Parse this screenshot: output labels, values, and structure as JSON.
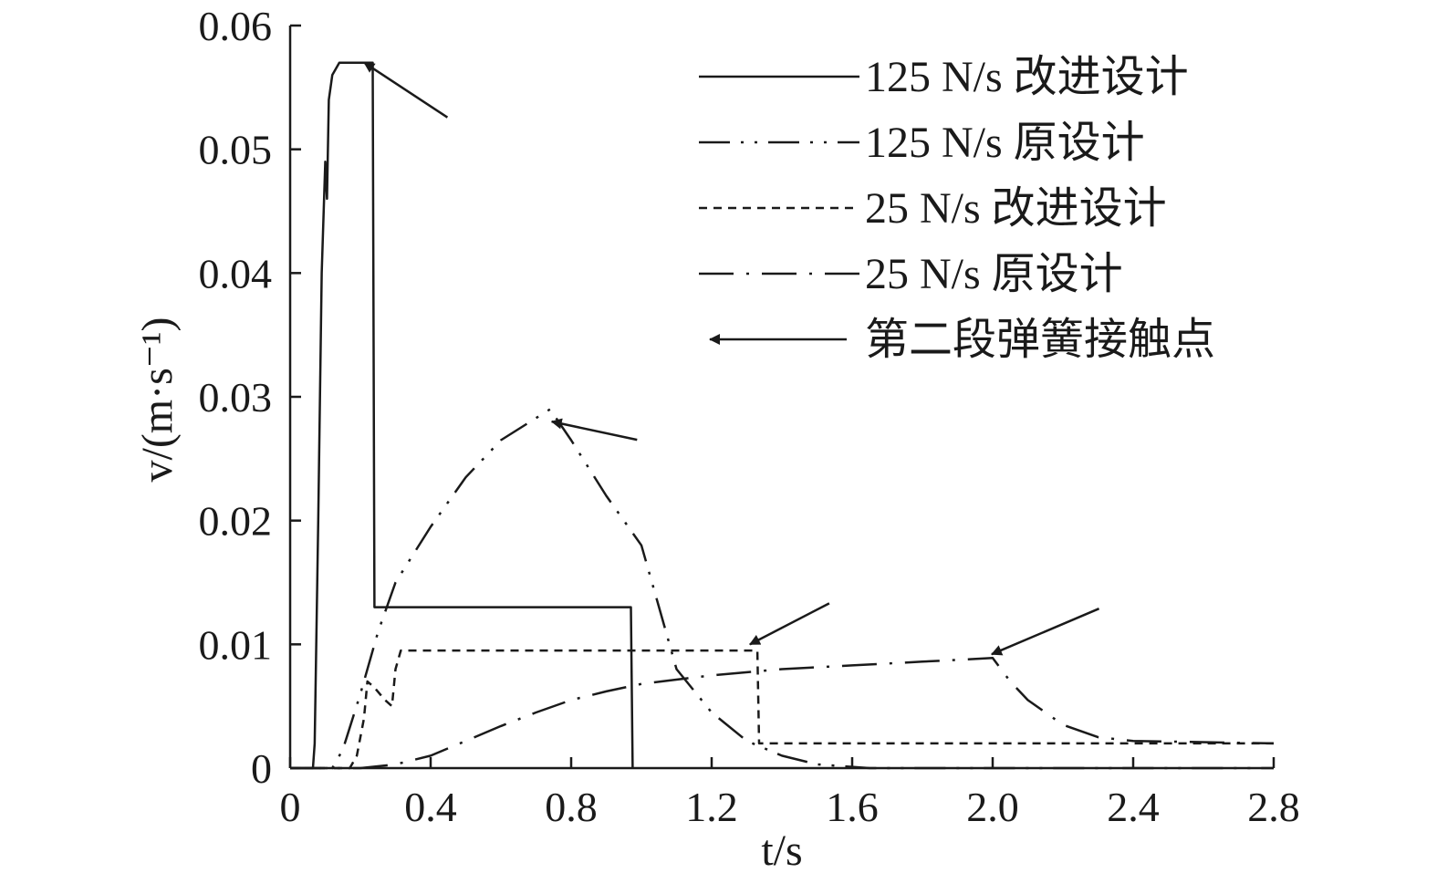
{
  "chart_data": {
    "type": "line",
    "xlabel": "t/s",
    "ylabel": "v/(m·s⁻¹)",
    "xlim": [
      0,
      2.8
    ],
    "ylim": [
      0,
      0.06
    ],
    "x_ticks": [
      "0",
      "0.4",
      "0.8",
      "1.2",
      "1.6",
      "2.0",
      "2.4",
      "2.8"
    ],
    "y_ticks": [
      "0",
      "0.01",
      "0.02",
      "0.03",
      "0.04",
      "0.05",
      "0.06"
    ],
    "grid": false,
    "legend_position": "top-right",
    "series": [
      {
        "name": "125 N/s 改进设计",
        "style": "solid",
        "points": [
          [
            0.0,
            0
          ],
          [
            0.065,
            0
          ],
          [
            0.07,
            0.002
          ],
          [
            0.08,
            0.02
          ],
          [
            0.09,
            0.04
          ],
          [
            0.1,
            0.049
          ],
          [
            0.105,
            0.046
          ],
          [
            0.11,
            0.054
          ],
          [
            0.12,
            0.056
          ],
          [
            0.14,
            0.057
          ],
          [
            0.235,
            0.057
          ],
          [
            0.24,
            0.013
          ],
          [
            0.97,
            0.013
          ],
          [
            0.975,
            0
          ]
        ]
      },
      {
        "name": "125 N/s 原设计",
        "style": "dash-dot-dot",
        "points": [
          [
            0.0,
            0
          ],
          [
            0.12,
            0
          ],
          [
            0.15,
            0.0015
          ],
          [
            0.2,
            0.006
          ],
          [
            0.25,
            0.011
          ],
          [
            0.3,
            0.015
          ],
          [
            0.4,
            0.0195
          ],
          [
            0.5,
            0.0235
          ],
          [
            0.6,
            0.0265
          ],
          [
            0.74,
            0.029
          ],
          [
            0.8,
            0.0265
          ],
          [
            0.9,
            0.022
          ],
          [
            1.0,
            0.018
          ],
          [
            1.05,
            0.013
          ],
          [
            1.1,
            0.008
          ],
          [
            1.2,
            0.0045
          ],
          [
            1.3,
            0.0022
          ],
          [
            1.4,
            0.001
          ],
          [
            1.5,
            0.0003
          ],
          [
            1.65,
            0
          ],
          [
            2.8,
            0
          ]
        ]
      },
      {
        "name": "25 N/s 改进设计",
        "style": "dashed",
        "points": [
          [
            0.0,
            0
          ],
          [
            0.17,
            0
          ],
          [
            0.19,
            0.001
          ],
          [
            0.21,
            0.004
          ],
          [
            0.22,
            0.007
          ],
          [
            0.24,
            0.0065
          ],
          [
            0.27,
            0.0055
          ],
          [
            0.29,
            0.005
          ],
          [
            0.3,
            0.008
          ],
          [
            0.315,
            0.0095
          ],
          [
            1.33,
            0.0095
          ],
          [
            1.335,
            0.002
          ],
          [
            2.8,
            0.002
          ]
        ]
      },
      {
        "name": "25 N/s 原设计",
        "style": "dash-dot",
        "points": [
          [
            0.0,
            0
          ],
          [
            0.2,
            0
          ],
          [
            0.3,
            0.0003
          ],
          [
            0.4,
            0.001
          ],
          [
            0.5,
            0.0022
          ],
          [
            0.6,
            0.0034
          ],
          [
            0.7,
            0.0045
          ],
          [
            0.8,
            0.0055
          ],
          [
            0.9,
            0.0062
          ],
          [
            1.0,
            0.0068
          ],
          [
            1.2,
            0.0075
          ],
          [
            1.4,
            0.008
          ],
          [
            1.6,
            0.0083
          ],
          [
            1.8,
            0.0086
          ],
          [
            2.0,
            0.0089
          ],
          [
            2.05,
            0.007
          ],
          [
            2.1,
            0.0055
          ],
          [
            2.2,
            0.0035
          ],
          [
            2.3,
            0.0025
          ],
          [
            2.4,
            0.0022
          ],
          [
            2.8,
            0.002
          ]
        ]
      }
    ],
    "annotations": [
      {
        "label": "第二段弹簧接触点",
        "marker": "arrow",
        "points": [
          [
            0.24,
            0.057
          ],
          [
            0.78,
            0.028
          ],
          [
            1.34,
            0.01
          ],
          [
            2.03,
            0.0092
          ]
        ]
      }
    ]
  }
}
